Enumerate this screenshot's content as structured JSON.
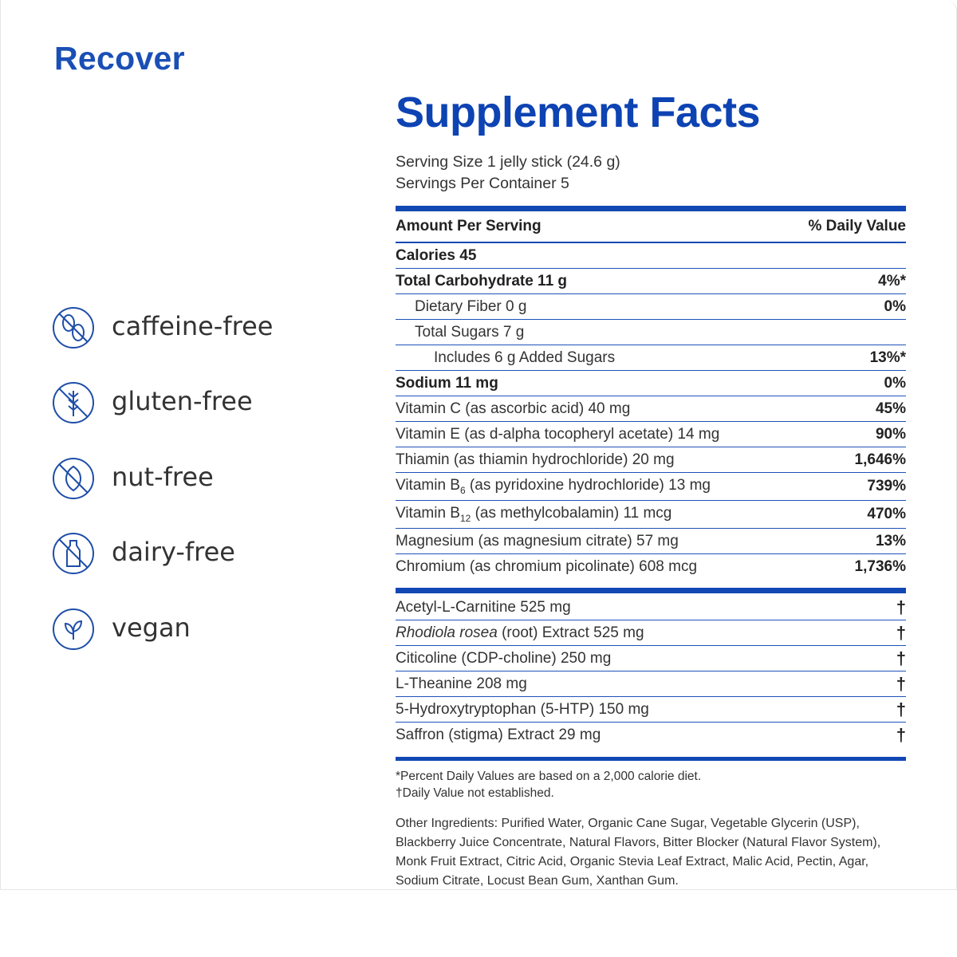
{
  "product": "Recover",
  "badges": [
    "caffeine-free",
    "gluten-free",
    "nut-free",
    "dairy-free",
    "vegan"
  ],
  "facts": {
    "title": "Supplement Facts",
    "serving_size": "Serving Size 1 jelly stick (24.6 g)",
    "servings_per_container": "Servings Per Container 5",
    "header": {
      "amount": "Amount Per Serving",
      "daily_value": "% Daily Value"
    },
    "rows": [
      {
        "name": "Calories 45",
        "bold": true,
        "indent": 0
      },
      {
        "name": "Total Carbohydrate 11 g",
        "bold": true,
        "indent": 0,
        "dv": "4%*"
      },
      {
        "name": "Dietary Fiber 0 g",
        "indent": 1,
        "dv": "0%"
      },
      {
        "name": "Total Sugars 7 g",
        "indent": 1
      },
      {
        "name": "Includes 6 g Added Sugars",
        "indent": 2,
        "dv": "13%*"
      },
      {
        "name": "Sodium 11 mg",
        "bold": true,
        "indent": 0,
        "dv": "0%"
      },
      {
        "name": "Vitamin C (as ascorbic acid) 40 mg",
        "indent": 0,
        "dv": "45%"
      },
      {
        "name": "Vitamin E (as d-alpha tocopheryl acetate) 14 mg",
        "indent": 0,
        "dv": "90%"
      },
      {
        "name": "Thiamin (as thiamin hydrochloride) 20 mg",
        "indent": 0,
        "dv": "1,646%"
      },
      {
        "name": "Vitamin B",
        "sub": "6",
        "name_rest": " (as pyridoxine hydrochloride) 13 mg",
        "indent": 0,
        "dv": "739%"
      },
      {
        "name": "Vitamin B",
        "sub": "12",
        "name_rest": " (as methylcobalamin) 11 mcg",
        "indent": 0,
        "dv": "470%"
      },
      {
        "name": "Magnesium (as magnesium citrate) 57 mg",
        "indent": 0,
        "dv": "13%"
      },
      {
        "name": "Chromium (as chromium picolinate) 608 mcg",
        "indent": 0,
        "dv": "1,736%"
      }
    ],
    "other_rows": [
      {
        "name": "Acetyl-L-Carnitine 525 mg",
        "dv": "†"
      },
      {
        "name_italic": "Rhodiola rosea",
        "name": " (root) Extract 525 mg",
        "dv": "†"
      },
      {
        "name": "Citicoline (CDP-choline) 250 mg",
        "dv": "†"
      },
      {
        "name": "L-Theanine 208 mg",
        "dv": "†"
      },
      {
        "name": "5-Hydroxytryptophan (5-HTP) 150 mg",
        "dv": "†"
      },
      {
        "name": "Saffron (stigma) Extract 29 mg",
        "dv": "†"
      }
    ],
    "footnotes": [
      "*Percent Daily Values are based on a 2,000 calorie diet.",
      "†Daily Value not established."
    ],
    "other_ingredients": "Other Ingredients: Purified Water, Organic Cane Sugar, Vegetable Glycerin (USP), Blackberry Juice Concentrate, Natural Flavors, Bitter Blocker (Natural Flavor System), Monk Fruit Extract, Citric Acid, Organic Stevia Leaf Extract, Malic Acid, Pectin, Agar, Sodium Citrate, Locust Bean Gum, Xanthan Gum."
  }
}
